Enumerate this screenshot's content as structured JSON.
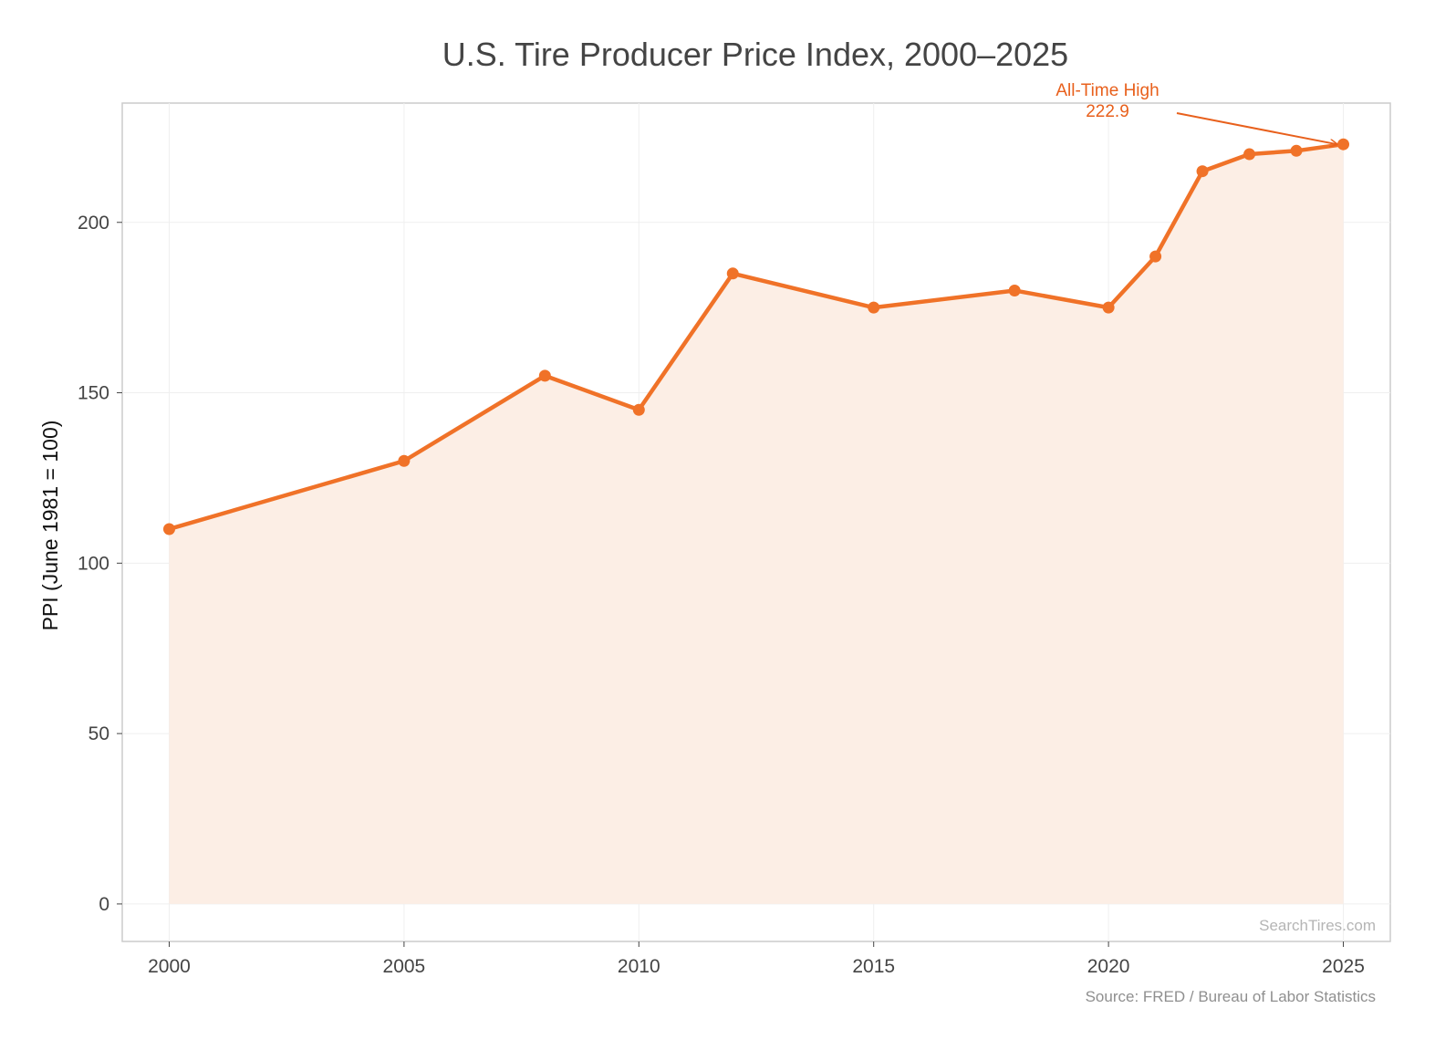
{
  "chart_data": {
    "type": "line",
    "title": "U.S. Tire Producer Price Index, 2000–2025",
    "xlabel": "",
    "ylabel": "PPI (June 1981 = 100)",
    "xlim": [
      1999,
      2026
    ],
    "ylim": [
      -11,
      235
    ],
    "x_ticks": [
      2000,
      2005,
      2010,
      2015,
      2020,
      2025
    ],
    "y_ticks": [
      0,
      50,
      100,
      150,
      200
    ],
    "grid": true,
    "area_fill": true,
    "markers": true,
    "series": [
      {
        "x": [
          2000,
          2005,
          2008,
          2010,
          2012,
          2015,
          2018,
          2020,
          2021,
          2022,
          2023,
          2024,
          2025
        ],
        "values": [
          110,
          130,
          155,
          145,
          185,
          175,
          180,
          175,
          190,
          215,
          220,
          221,
          222.9
        ]
      }
    ],
    "annotation": {
      "line1": "All-Time High",
      "line2": "222.9",
      "target_x": 2025,
      "target_y": 222.9
    },
    "watermark": "SearchTires.com",
    "source": "Source: FRED / Bureau of Labor Statistics"
  },
  "colors": {
    "line": "#F07228",
    "fill": "#FCEEE5",
    "annotation": "#E8601C",
    "grid": "#EFEFEF",
    "frame": "#CCCCCC"
  }
}
